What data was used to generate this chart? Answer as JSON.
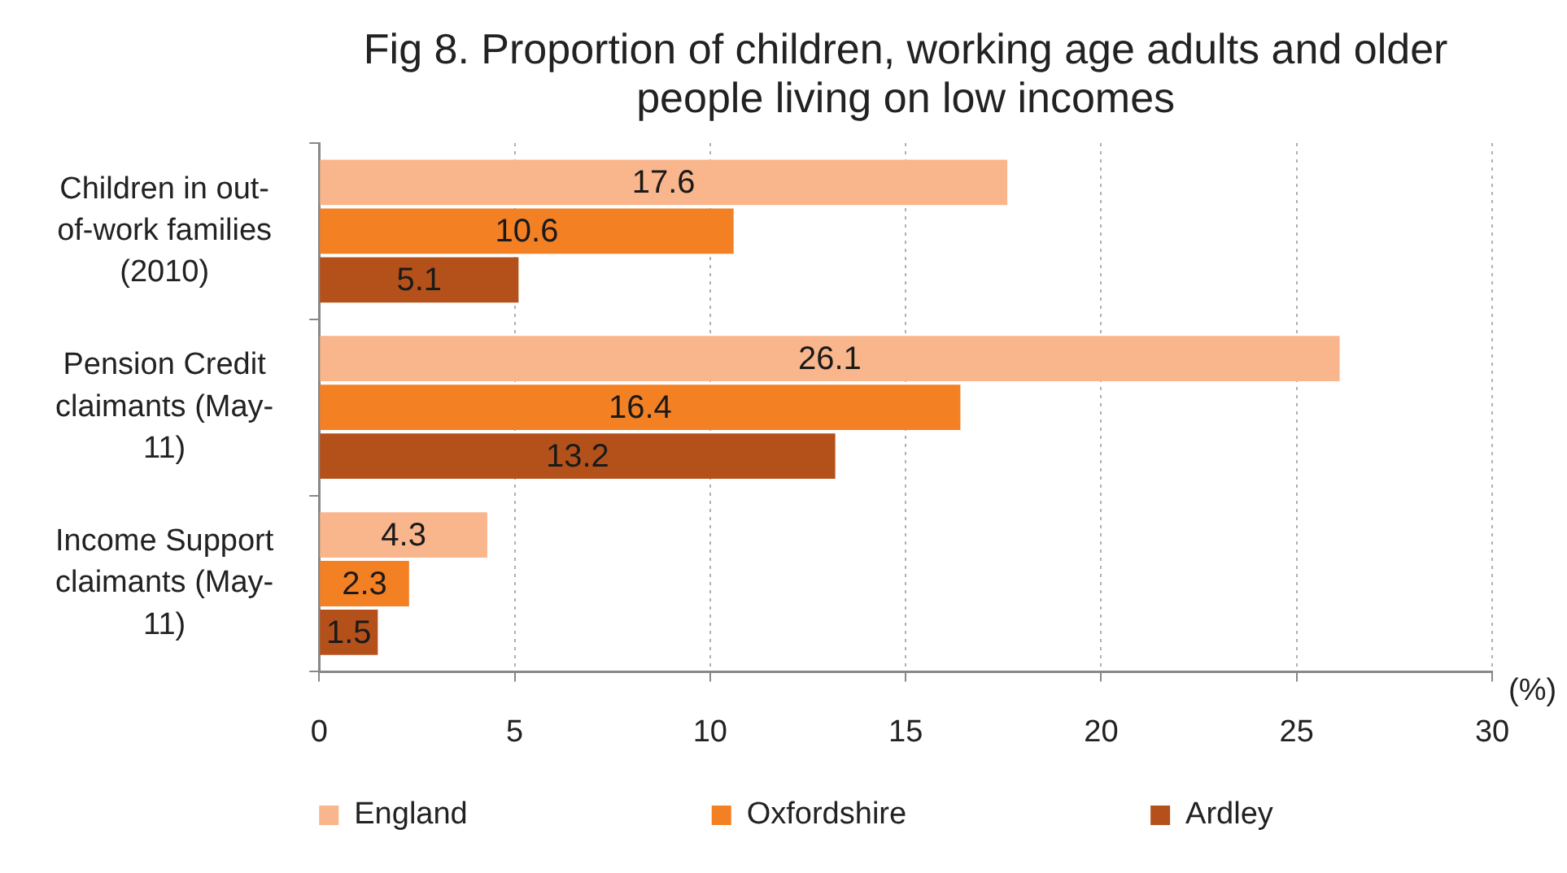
{
  "chart_data": {
    "type": "bar",
    "orientation": "horizontal",
    "title": "Fig 8. Proportion of children, working age adults and older people living on low incomes",
    "xlabel": "(%)",
    "categories": [
      "Children in out-of-work families (2010)",
      "Pension Credit claimants (May-11)",
      "Income Support claimants (May-11)"
    ],
    "series": [
      {
        "name": "England",
        "color": "#f9b58b",
        "values": [
          17.6,
          26.1,
          4.3
        ]
      },
      {
        "name": "Oxfordshire",
        "color": "#f48024",
        "values": [
          10.6,
          16.4,
          2.3
        ]
      },
      {
        "name": "Ardley",
        "color": "#b4511b",
        "values": [
          5.1,
          13.2,
          1.5
        ]
      }
    ],
    "xlim": [
      0,
      30
    ],
    "xticks": [
      0,
      5,
      10,
      15,
      20,
      25,
      30
    ],
    "grid": "x",
    "legend": "bottom",
    "data_labels": true
  }
}
